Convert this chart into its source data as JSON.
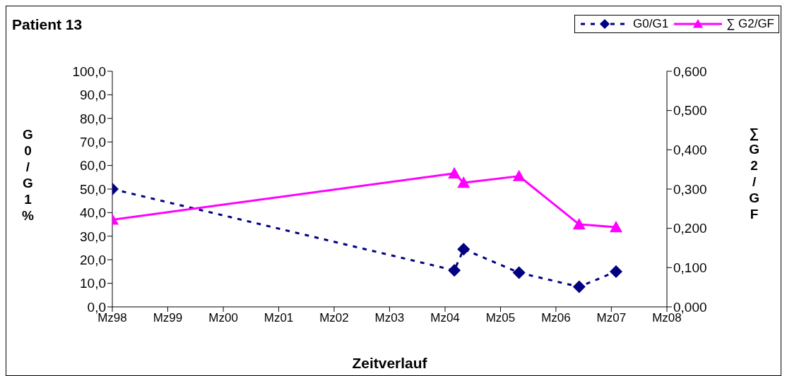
{
  "chart_data": {
    "type": "line",
    "title": "Patient 13",
    "xlabel": "Zeitverlauf",
    "ylabel": "G0/G1 %",
    "y2label": "∑G2/GF",
    "x": [
      "1998-03",
      "2004-05",
      "2004-07",
      "2005-07",
      "2006-08",
      "2007-04"
    ],
    "series": [
      {
        "name": "G0/G1",
        "color": "#000080",
        "marker": "diamond",
        "line_style": "dashed",
        "values": [
          50.0,
          15.5,
          24.5,
          14.5,
          8.5,
          15.0
        ]
      },
      {
        "name": "∑ G2/GF",
        "color": "#ff00ff",
        "marker": "triangle",
        "line_style": "solid",
        "axis": "y2",
        "values": [
          0.222,
          0.34,
          0.316,
          0.333,
          0.21,
          0.203
        ]
      }
    ],
    "xlim": [
      "1998-03",
      "2008-03"
    ],
    "xticks": [
      {
        "value": "1998-03",
        "label": "Mz98"
      },
      {
        "value": "1999-03",
        "label": "Mz99"
      },
      {
        "value": "2000-03",
        "label": "Mz00"
      },
      {
        "value": "2001-03",
        "label": "Mz01"
      },
      {
        "value": "2002-03",
        "label": "Mz02"
      },
      {
        "value": "2003-03",
        "label": "Mz03"
      },
      {
        "value": "2004-03",
        "label": "Mz04"
      },
      {
        "value": "2005-03",
        "label": "Mz05"
      },
      {
        "value": "2006-03",
        "label": "Mz06"
      },
      {
        "value": "2007-03",
        "label": "Mz07"
      },
      {
        "value": "2008-03",
        "label": "Mz08"
      }
    ],
    "ylim": [
      0,
      100
    ],
    "yticks": [
      {
        "value": 0,
        "label": "0,0"
      },
      {
        "value": 10,
        "label": "10,0"
      },
      {
        "value": 20,
        "label": "20,0"
      },
      {
        "value": 30,
        "label": "30,0"
      },
      {
        "value": 40,
        "label": "40,0"
      },
      {
        "value": 50,
        "label": "50,0"
      },
      {
        "value": 60,
        "label": "60,0"
      },
      {
        "value": 70,
        "label": "70,0"
      },
      {
        "value": 80,
        "label": "80,0"
      },
      {
        "value": 90,
        "label": "90,0"
      },
      {
        "value": 100,
        "label": "100,0"
      }
    ],
    "y2lim": [
      0,
      0.6
    ],
    "y2ticks": [
      {
        "value": 0,
        "label": "0,000"
      },
      {
        "value": 0.1,
        "label": "0,100"
      },
      {
        "value": 0.2,
        "label": "0,200"
      },
      {
        "value": 0.3,
        "label": "0,300"
      },
      {
        "value": 0.4,
        "label": "0,400"
      },
      {
        "value": 0.5,
        "label": "0,500"
      },
      {
        "value": 0.6,
        "label": "0,600"
      }
    ],
    "grid": false,
    "legend": "top right"
  }
}
